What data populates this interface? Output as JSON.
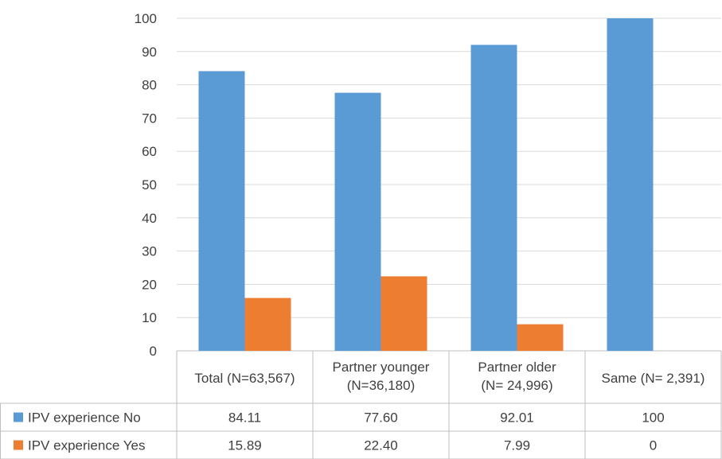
{
  "chart_data": {
    "type": "bar",
    "title": "",
    "xlabel": "",
    "ylabel": "",
    "ylim": [
      0,
      100
    ],
    "y_ticks": [
      0,
      10,
      20,
      30,
      40,
      50,
      60,
      70,
      80,
      90,
      100
    ],
    "grid": true,
    "legend": "data-table-left",
    "categories": [
      [
        "Total (N=63,567)"
      ],
      [
        "Partner younger",
        "(N=36,180)"
      ],
      [
        "Partner older",
        "(N= 24,996)"
      ],
      [
        "Same (N= 2,391)"
      ]
    ],
    "series": [
      {
        "name": "IPV experience No",
        "color": "#5b9bd5",
        "values": [
          84.11,
          77.6,
          92.01,
          100
        ],
        "labels": [
          "84.11",
          "77.60",
          "92.01",
          "100"
        ]
      },
      {
        "name": "IPV experience Yes",
        "color": "#ed7d31",
        "values": [
          15.89,
          22.4,
          7.99,
          0
        ],
        "labels": [
          "15.89",
          "22.40",
          "7.99",
          "0"
        ]
      }
    ]
  }
}
